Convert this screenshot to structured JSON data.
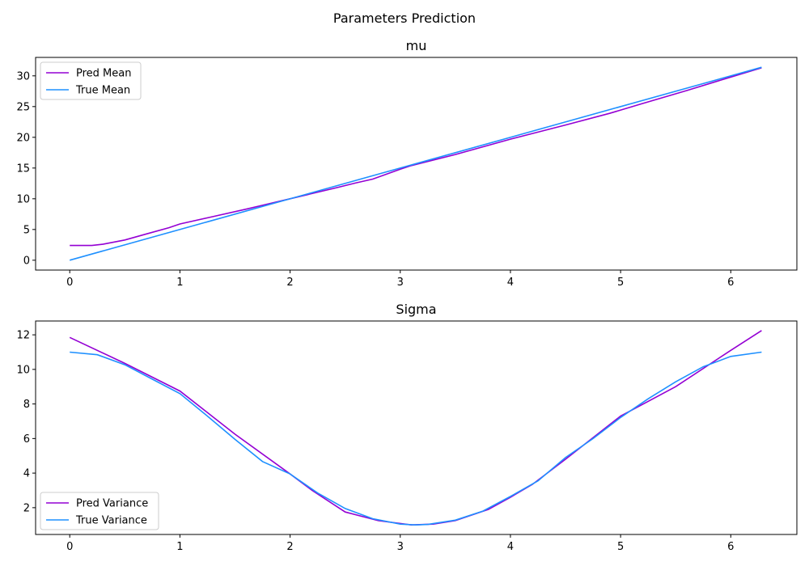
{
  "figure": {
    "title": "Parameters Prediction"
  },
  "chart_data": [
    {
      "type": "line",
      "title": "mu",
      "xlabel": "",
      "ylabel": "",
      "xlim": [
        -0.31,
        6.6
      ],
      "ylim": [
        -1.6,
        33.0
      ],
      "xticks": [
        0,
        1,
        2,
        3,
        4,
        5,
        6
      ],
      "yticks": [
        0,
        5,
        10,
        15,
        20,
        25,
        30
      ],
      "grid": false,
      "legend": "upper-left",
      "series": [
        {
          "name": "Pred Mean",
          "color": "#9400d3",
          "x": [
            0,
            0.2,
            0.3,
            0.5,
            0.7,
            0.9,
            1.0,
            1.3,
            1.6,
            2.0,
            2.4,
            2.6,
            2.75,
            3.0,
            3.1,
            3.5,
            4.0,
            4.5,
            4.9,
            5.2,
            5.6,
            6.0,
            6.28
          ],
          "y": [
            2.4,
            2.4,
            2.6,
            3.3,
            4.3,
            5.3,
            5.9,
            7.1,
            8.3,
            10.0,
            11.7,
            12.6,
            13.2,
            14.8,
            15.4,
            17.2,
            19.7,
            22.0,
            23.9,
            25.5,
            27.6,
            29.8,
            31.3
          ]
        },
        {
          "name": "True Mean",
          "color": "#1e90ff",
          "x": [
            0,
            6.28
          ],
          "y": [
            0,
            31.4
          ]
        }
      ]
    },
    {
      "type": "line",
      "title": "Sigma",
      "xlabel": "",
      "ylabel": "",
      "xlim": [
        -0.31,
        6.6
      ],
      "ylim": [
        0.45,
        12.8
      ],
      "xticks": [
        0,
        1,
        2,
        3,
        4,
        5,
        6
      ],
      "yticks": [
        2,
        4,
        6,
        8,
        10,
        12
      ],
      "grid": false,
      "legend": "lower-left",
      "series": [
        {
          "name": "Pred Variance",
          "color": "#9400d3",
          "x": [
            0,
            0.5,
            1.0,
            1.5,
            2.0,
            2.2,
            2.5,
            2.8,
            3.1,
            3.3,
            3.5,
            3.8,
            4.0,
            4.2,
            4.5,
            5.0,
            5.5,
            6.0,
            6.28
          ],
          "y": [
            11.85,
            10.35,
            8.75,
            6.25,
            3.95,
            3.0,
            1.75,
            1.25,
            1.0,
            1.05,
            1.25,
            1.9,
            2.6,
            3.35,
            4.8,
            7.3,
            9.0,
            11.1,
            12.25
          ]
        },
        {
          "name": "True Variance",
          "color": "#1e90ff",
          "x": [
            0,
            0.25,
            0.5,
            0.75,
            1.0,
            1.25,
            1.5,
            1.75,
            2.0,
            2.25,
            2.5,
            2.75,
            3.0,
            3.14,
            3.25,
            3.5,
            3.75,
            4.0,
            4.25,
            4.5,
            4.75,
            5.0,
            5.25,
            5.5,
            5.75,
            6.0,
            6.28
          ],
          "y": [
            11.0,
            10.85,
            10.27,
            9.43,
            8.6,
            7.3,
            5.95,
            4.67,
            3.95,
            2.85,
            1.95,
            1.36,
            1.05,
            1.0,
            1.03,
            1.28,
            1.8,
            2.65,
            3.55,
            4.9,
            6.0,
            7.22,
            8.3,
            9.28,
            10.15,
            10.75,
            11.0
          ]
        }
      ]
    }
  ]
}
